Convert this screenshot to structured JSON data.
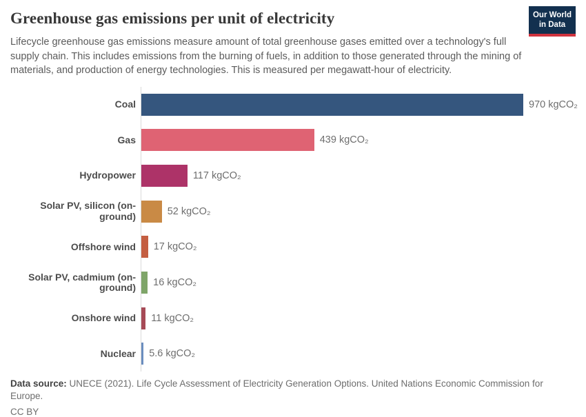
{
  "header": {
    "title": "Greenhouse gas emissions per unit of electricity",
    "subtitle": "Lifecycle greenhouse gas emissions measure amount of total greenhouse gases emitted over a technology's full supply chain. This includes emissions from the burning of fuels, in addition to those generated through the mining of materials, and production of energy technologies. This is measured per megawatt-hour of electricity.",
    "logo": {
      "line1": "Our World",
      "line2": "in Data",
      "bg_color": "#12304f",
      "accent_color": "#d0333f"
    }
  },
  "chart_data": {
    "type": "bar",
    "orientation": "horizontal",
    "title": "Greenhouse gas emissions per unit of electricity",
    "unit": "kgCO₂ per megawatt-hour",
    "xlim": [
      0,
      970
    ],
    "grid": false,
    "categories": [
      "Coal",
      "Gas",
      "Hydropower",
      "Solar PV, silicon (on-ground)",
      "Offshore wind",
      "Solar PV, cadmium (on-ground)",
      "Onshore wind",
      "Nuclear"
    ],
    "values": [
      970,
      439,
      117,
      52,
      17,
      16,
      11,
      5.6
    ],
    "value_labels": [
      "970 kgCO₂",
      "439 kgCO₂",
      "117 kgCO₂",
      "52 kgCO₂",
      "17 kgCO₂",
      "16 kgCO₂",
      "11 kgCO₂",
      "5.6 kgCO₂"
    ],
    "bar_colors": [
      "#35567e",
      "#df6373",
      "#ad3368",
      "#c98a45",
      "#c45e41",
      "#7fa569",
      "#a64a56",
      "#6b8ebf"
    ],
    "axis_line_color": "#d9d9d9"
  },
  "footer": {
    "source_label": "Data source:",
    "source_text": "UNECE (2021). Life Cycle Assessment of Electricity Generation Options. United Nations Economic Commission for Europe.",
    "license": "CC BY"
  }
}
